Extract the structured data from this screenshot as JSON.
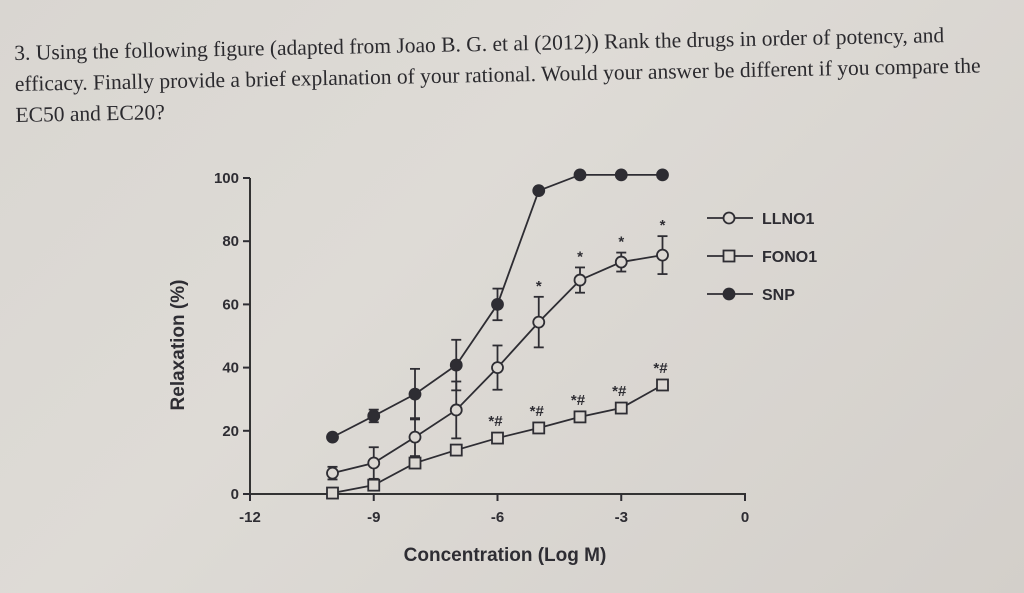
{
  "question": {
    "text": "3. Using the following figure (adapted from Joao B. G. et al (2012)) Rank the drugs in order of potency, and efficacy. Finally provide a brief explanation of your rational. Would your answer be different if you compare the EC50 and EC20?"
  },
  "chart_data": {
    "type": "line",
    "title": "",
    "xlabel": "Concentration (Log M)",
    "ylabel": "Relaxation (%)",
    "xlim": [
      -12,
      0
    ],
    "ylim": [
      0,
      100
    ],
    "xticks": [
      "-12",
      "-9",
      "-6",
      "-3",
      "0"
    ],
    "yticks": [
      "0",
      "20",
      "40",
      "60",
      "80",
      "100"
    ],
    "grid": false,
    "legend_position": "right",
    "x": [
      -10,
      -9,
      -8,
      -7,
      -6,
      -5,
      -4,
      -3,
      -2
    ],
    "series": [
      {
        "name": "LLNO1",
        "marker": "open-circle",
        "values": [
          6.6,
          9.8,
          18,
          26.6,
          40,
          54.4,
          67.7,
          73.4,
          75.6
        ],
        "errors": [
          2,
          5,
          6,
          9,
          7,
          8,
          4,
          3,
          6
        ],
        "annotations": [
          "",
          "",
          "",
          "",
          "",
          "*",
          "*",
          "*",
          "*"
        ]
      },
      {
        "name": "FONO1",
        "marker": "open-square",
        "values": [
          0.3,
          2.8,
          9.8,
          13.9,
          17.7,
          20.9,
          24.4,
          27.2,
          34.5
        ],
        "errors": [
          1,
          1,
          1,
          1,
          1,
          1,
          1,
          1,
          1
        ],
        "annotations": [
          "",
          "",
          "",
          "",
          "*#",
          "*#",
          "*#",
          "*#",
          "*#"
        ]
      },
      {
        "name": "SNP",
        "marker": "filled-circle",
        "values": [
          18,
          24.7,
          31.6,
          40.8,
          60,
          96,
          101,
          101,
          101
        ],
        "errors": [
          0,
          2,
          8,
          8,
          5,
          0,
          0,
          0,
          0
        ],
        "annotations": [
          "",
          "",
          "",
          "",
          "",
          "",
          "",
          "",
          ""
        ]
      }
    ]
  }
}
